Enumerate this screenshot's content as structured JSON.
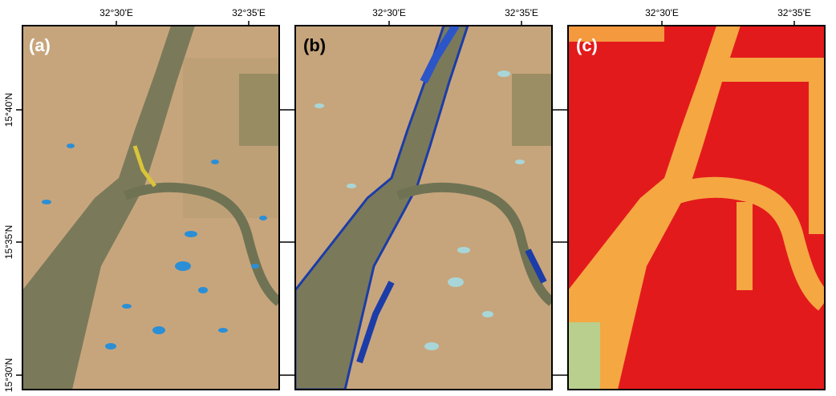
{
  "panels": [
    {
      "label": "(a)",
      "xticks": [
        "32°30'E",
        "32°35'E"
      ]
    },
    {
      "label": "(b)",
      "xticks": [
        "32°30'E",
        "32°35'E"
      ]
    },
    {
      "label": "(c)",
      "xticks": [
        "32°30'E",
        "32°35'E"
      ]
    }
  ],
  "yticks": [
    "15°40'N",
    "15°35'N",
    "15°30'N"
  ]
}
